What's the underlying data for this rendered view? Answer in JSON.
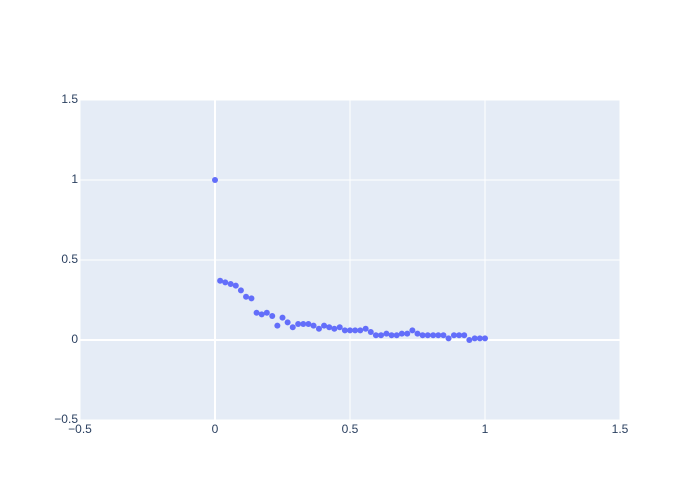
{
  "chart_data": {
    "type": "scatter",
    "color": "#636efa",
    "grid": true,
    "x": [
      0,
      0.019,
      0.038,
      0.058,
      0.077,
      0.096,
      0.115,
      0.135,
      0.154,
      0.173,
      0.192,
      0.212,
      0.231,
      0.25,
      0.269,
      0.288,
      0.308,
      0.327,
      0.346,
      0.365,
      0.385,
      0.404,
      0.423,
      0.442,
      0.462,
      0.481,
      0.5,
      0.519,
      0.538,
      0.558,
      0.577,
      0.596,
      0.615,
      0.635,
      0.654,
      0.673,
      0.692,
      0.712,
      0.731,
      0.75,
      0.769,
      0.788,
      0.808,
      0.827,
      0.846,
      0.865,
      0.885,
      0.904,
      0.923,
      0.942,
      0.962,
      0.981,
      1
    ],
    "values": [
      1,
      0.37,
      0.36,
      0.35,
      0.34,
      0.31,
      0.27,
      0.26,
      0.17,
      0.16,
      0.17,
      0.15,
      0.09,
      0.14,
      0.11,
      0.08,
      0.1,
      0.1,
      0.1,
      0.09,
      0.07,
      0.09,
      0.08,
      0.07,
      0.08,
      0.06,
      0.06,
      0.06,
      0.06,
      0.07,
      0.05,
      0.03,
      0.03,
      0.04,
      0.03,
      0.03,
      0.04,
      0.04,
      0.06,
      0.04,
      0.03,
      0.03,
      0.03,
      0.03,
      0.03,
      0.01,
      0.03,
      0.03,
      0.03,
      0,
      0.01,
      0.01,
      0.01
    ],
    "xlim": [
      -0.5,
      1.5
    ],
    "ylim": [
      -0.5,
      1.5
    ],
    "xticks": [
      {
        "value": -0.5,
        "label": "−0.5"
      },
      0,
      0.5,
      1,
      1.5
    ],
    "yticks": [
      {
        "value": -0.5,
        "label": "−0.5"
      },
      0,
      0.5,
      1,
      1.5
    ]
  }
}
